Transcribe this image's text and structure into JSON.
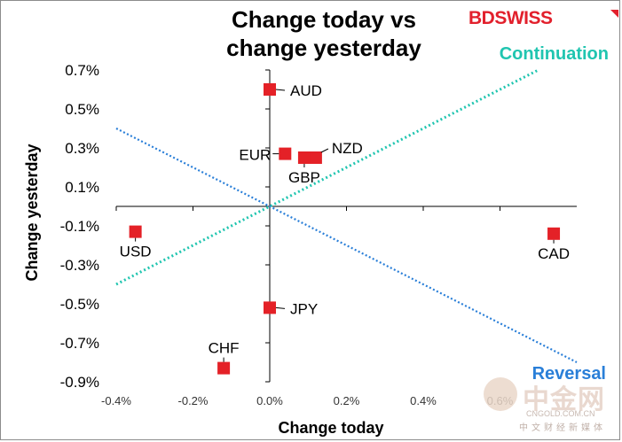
{
  "chart_data": {
    "type": "scatter",
    "title_line1": "Change today vs",
    "title_line2": "change yesterday",
    "xlabel": "Change today",
    "ylabel": "Change yesterday",
    "xlim": [
      -0.4,
      0.8
    ],
    "ylim": [
      -0.9,
      0.7
    ],
    "x_ticks": [
      {
        "v": -0.4,
        "label": "-0.4%"
      },
      {
        "v": -0.2,
        "label": "-0.2%"
      },
      {
        "v": 0.0,
        "label": "0.0%"
      },
      {
        "v": 0.2,
        "label": "0.2%"
      },
      {
        "v": 0.4,
        "label": "0.4%"
      },
      {
        "v": 0.6,
        "label": "0.6%"
      }
    ],
    "y_ticks": [
      {
        "v": 0.7,
        "label": "0.7%"
      },
      {
        "v": 0.5,
        "label": "0.5%"
      },
      {
        "v": 0.3,
        "label": "0.3%"
      },
      {
        "v": 0.1,
        "label": "0.1%"
      },
      {
        "v": -0.1,
        "label": "-0.1%"
      },
      {
        "v": -0.3,
        "label": "-0.3%"
      },
      {
        "v": -0.5,
        "label": "-0.5%"
      },
      {
        "v": -0.7,
        "label": "-0.7%"
      },
      {
        "v": -0.9,
        "label": "-0.9%"
      }
    ],
    "points": [
      {
        "label": "AUD",
        "x": 0.0,
        "y": 0.6,
        "pos": "right"
      },
      {
        "label": "NZD",
        "x": 0.12,
        "y": 0.25,
        "pos": "upper-right"
      },
      {
        "label": "EUR",
        "x": 0.04,
        "y": 0.27,
        "pos": "left"
      },
      {
        "label": "GBP",
        "x": 0.09,
        "y": 0.25,
        "pos": "below"
      },
      {
        "label": "USD",
        "x": -0.35,
        "y": -0.13,
        "pos": "below"
      },
      {
        "label": "CAD",
        "x": 0.74,
        "y": -0.14,
        "pos": "below"
      },
      {
        "label": "JPY",
        "x": 0.0,
        "y": -0.52,
        "pos": "right"
      },
      {
        "label": "CHF",
        "x": -0.12,
        "y": -0.83,
        "pos": "above"
      }
    ],
    "lines": [
      {
        "name": "Continuation",
        "from": [
          -0.4,
          -0.4
        ],
        "to": [
          0.7,
          0.7
        ],
        "color": "#20c5b0"
      },
      {
        "name": "Reversal",
        "from": [
          -0.4,
          0.4
        ],
        "to": [
          0.8,
          -0.8
        ],
        "color": "#2a7fd8"
      }
    ],
    "marker_color": "#e42127"
  },
  "brand": {
    "logo": "BDSWISS",
    "watermark": "中金网",
    "watermark_url": "CNGOLD.COM.CN",
    "watermark_sub": "中文财经新媒体"
  }
}
